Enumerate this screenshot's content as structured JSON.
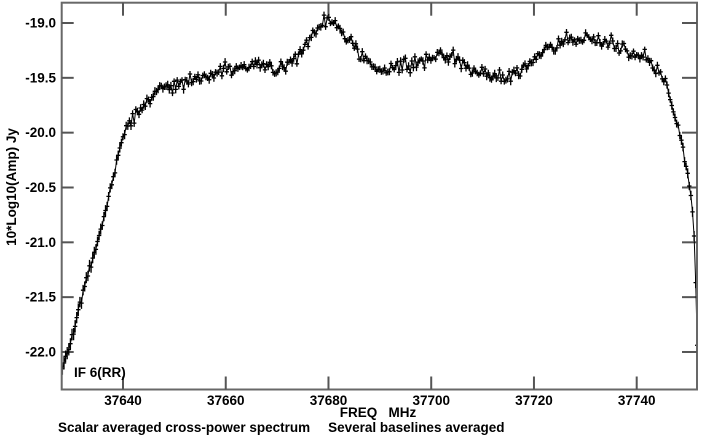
{
  "figure": {
    "ylabel": "10*Log10(Amp) Jy",
    "xlabel": "FREQ   MHz",
    "annotation": "IF 6(RR)",
    "caption_left": "Scalar averaged cross-power spectrum",
    "caption_right": "Several baselines averaged"
  },
  "chart_data": {
    "type": "line",
    "title": "Scalar averaged cross-power spectrum - Several baselines averaged",
    "xlabel": "FREQ MHz",
    "ylabel": "10*Log10(Amp) Jy",
    "annotation": "IF 6(RR)",
    "x_ticks": [
      37640,
      37660,
      37680,
      37700,
      37720,
      37740
    ],
    "y_ticks": [
      -19.0,
      -19.5,
      -20.0,
      -20.5,
      -21.0,
      -21.5,
      -22.0
    ],
    "xlim": [
      37628,
      37752
    ],
    "ylim": [
      -22.34,
      -18.82
    ],
    "grid": false,
    "legend": "none",
    "marker": "plus-with-error-bar",
    "n_channels": 399,
    "noise_amplitude": 0.032,
    "colors": {
      "data": "#000000",
      "frame": "#686868",
      "ticks": "#555555",
      "background": "#ffffff",
      "text": "#000000"
    },
    "envelope": [
      [
        37628.2,
        -22.18
      ],
      [
        37628.8,
        -22.05
      ],
      [
        37629.5,
        -21.95
      ],
      [
        37630.5,
        -21.78
      ],
      [
        37631.5,
        -21.58
      ],
      [
        37632.5,
        -21.42
      ],
      [
        37633.5,
        -21.25
      ],
      [
        37634.5,
        -21.08
      ],
      [
        37635.5,
        -20.92
      ],
      [
        37636.5,
        -20.72
      ],
      [
        37637.5,
        -20.52
      ],
      [
        37638.5,
        -20.32
      ],
      [
        37639.5,
        -20.12
      ],
      [
        37640.5,
        -20.0
      ],
      [
        37641.5,
        -19.9
      ],
      [
        37642.5,
        -19.83
      ],
      [
        37644,
        -19.74
      ],
      [
        37646,
        -19.66
      ],
      [
        37648,
        -19.6
      ],
      [
        37650,
        -19.57
      ],
      [
        37652,
        -19.54
      ],
      [
        37654,
        -19.51
      ],
      [
        37656,
        -19.49
      ],
      [
        37658,
        -19.46
      ],
      [
        37660,
        -19.45
      ],
      [
        37662,
        -19.43
      ],
      [
        37664,
        -19.4
      ],
      [
        37666,
        -19.38
      ],
      [
        37668,
        -19.4
      ],
      [
        37670,
        -19.42
      ],
      [
        37672,
        -19.39
      ],
      [
        37674,
        -19.3
      ],
      [
        37676,
        -19.16
      ],
      [
        37678,
        -19.04
      ],
      [
        37679.5,
        -18.97
      ],
      [
        37681,
        -19.0
      ],
      [
        37682,
        -19.06
      ],
      [
        37684,
        -19.15
      ],
      [
        37686,
        -19.28
      ],
      [
        37688,
        -19.39
      ],
      [
        37690,
        -19.44
      ],
      [
        37692,
        -19.42
      ],
      [
        37694,
        -19.4
      ],
      [
        37696,
        -19.38
      ],
      [
        37698,
        -19.34
      ],
      [
        37700,
        -19.31
      ],
      [
        37702,
        -19.28
      ],
      [
        37704,
        -19.31
      ],
      [
        37706,
        -19.36
      ],
      [
        37708,
        -19.42
      ],
      [
        37710,
        -19.46
      ],
      [
        37712,
        -19.49
      ],
      [
        37714,
        -19.51
      ],
      [
        37716,
        -19.46
      ],
      [
        37718,
        -19.4
      ],
      [
        37720,
        -19.33
      ],
      [
        37722,
        -19.26
      ],
      [
        37724,
        -19.2
      ],
      [
        37726,
        -19.16
      ],
      [
        37728,
        -19.14
      ],
      [
        37730,
        -19.14
      ],
      [
        37732,
        -19.16
      ],
      [
        37734,
        -19.18
      ],
      [
        37736,
        -19.21
      ],
      [
        37738,
        -19.24
      ],
      [
        37740,
        -19.28
      ],
      [
        37742,
        -19.33
      ],
      [
        37744,
        -19.41
      ],
      [
        37745,
        -19.49
      ],
      [
        37746,
        -19.61
      ],
      [
        37747,
        -19.76
      ],
      [
        37748,
        -19.95
      ],
      [
        37749,
        -20.15
      ],
      [
        37750,
        -20.4
      ],
      [
        37750.7,
        -20.62
      ],
      [
        37751.2,
        -20.95
      ],
      [
        37751.5,
        -21.4
      ],
      [
        37751.8,
        -21.95
      ]
    ]
  }
}
